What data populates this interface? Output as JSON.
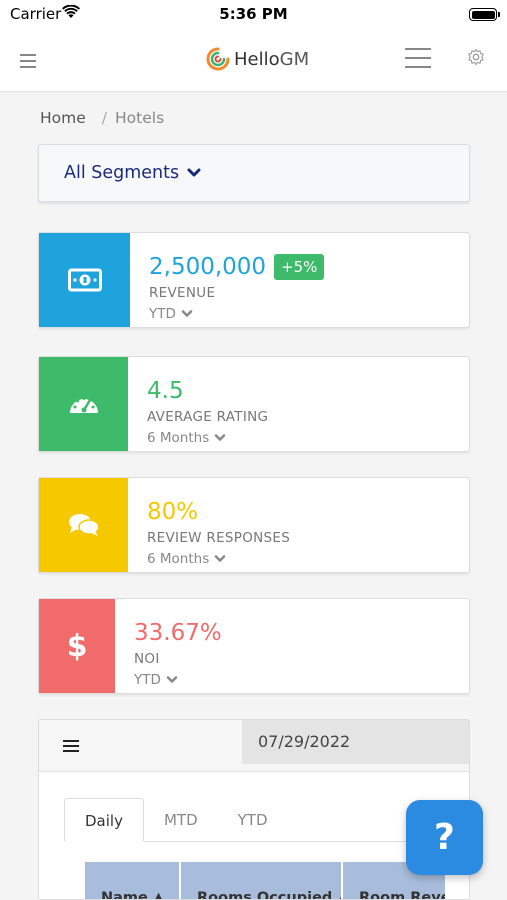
{
  "status_bar": {
    "carrier": "Carrier",
    "time": "5:36 PM"
  },
  "header": {
    "logo_hello": "Hello",
    "logo_gm": "GM"
  },
  "breadcrumb": {
    "home": "Home",
    "separator": "/",
    "current": "Hotels"
  },
  "segments": {
    "label": "All Segments"
  },
  "kpis": [
    {
      "value": "2,500,000",
      "badge": "+5%",
      "label": "REVENUE",
      "period": "YTD",
      "color": "#1fa3dc",
      "value_color": "#1fa3dc",
      "icon": "money-icon"
    },
    {
      "value": "4.5",
      "label": "AVERAGE RATING",
      "period": "6 Months",
      "color": "#3dba6a",
      "value_color": "#3dba6a",
      "icon": "gauge-icon"
    },
    {
      "value": "80%",
      "label": "REVIEW RESPONSES",
      "period": "6 Months",
      "color": "#f5c800",
      "value_color": "#f5c800",
      "icon": "chat-icon"
    },
    {
      "value": "33.67%",
      "label": "NOI",
      "period": "YTD",
      "color": "#f26b6b",
      "value_color": "#f26b6b",
      "icon": "dollar-icon"
    }
  ],
  "panel": {
    "date": "07/29/2022",
    "tabs": [
      "Daily",
      "MTD",
      "YTD"
    ],
    "columns": [
      "Name",
      "Rooms Occupied",
      "Room Reve"
    ]
  },
  "help": {
    "label": "?"
  }
}
